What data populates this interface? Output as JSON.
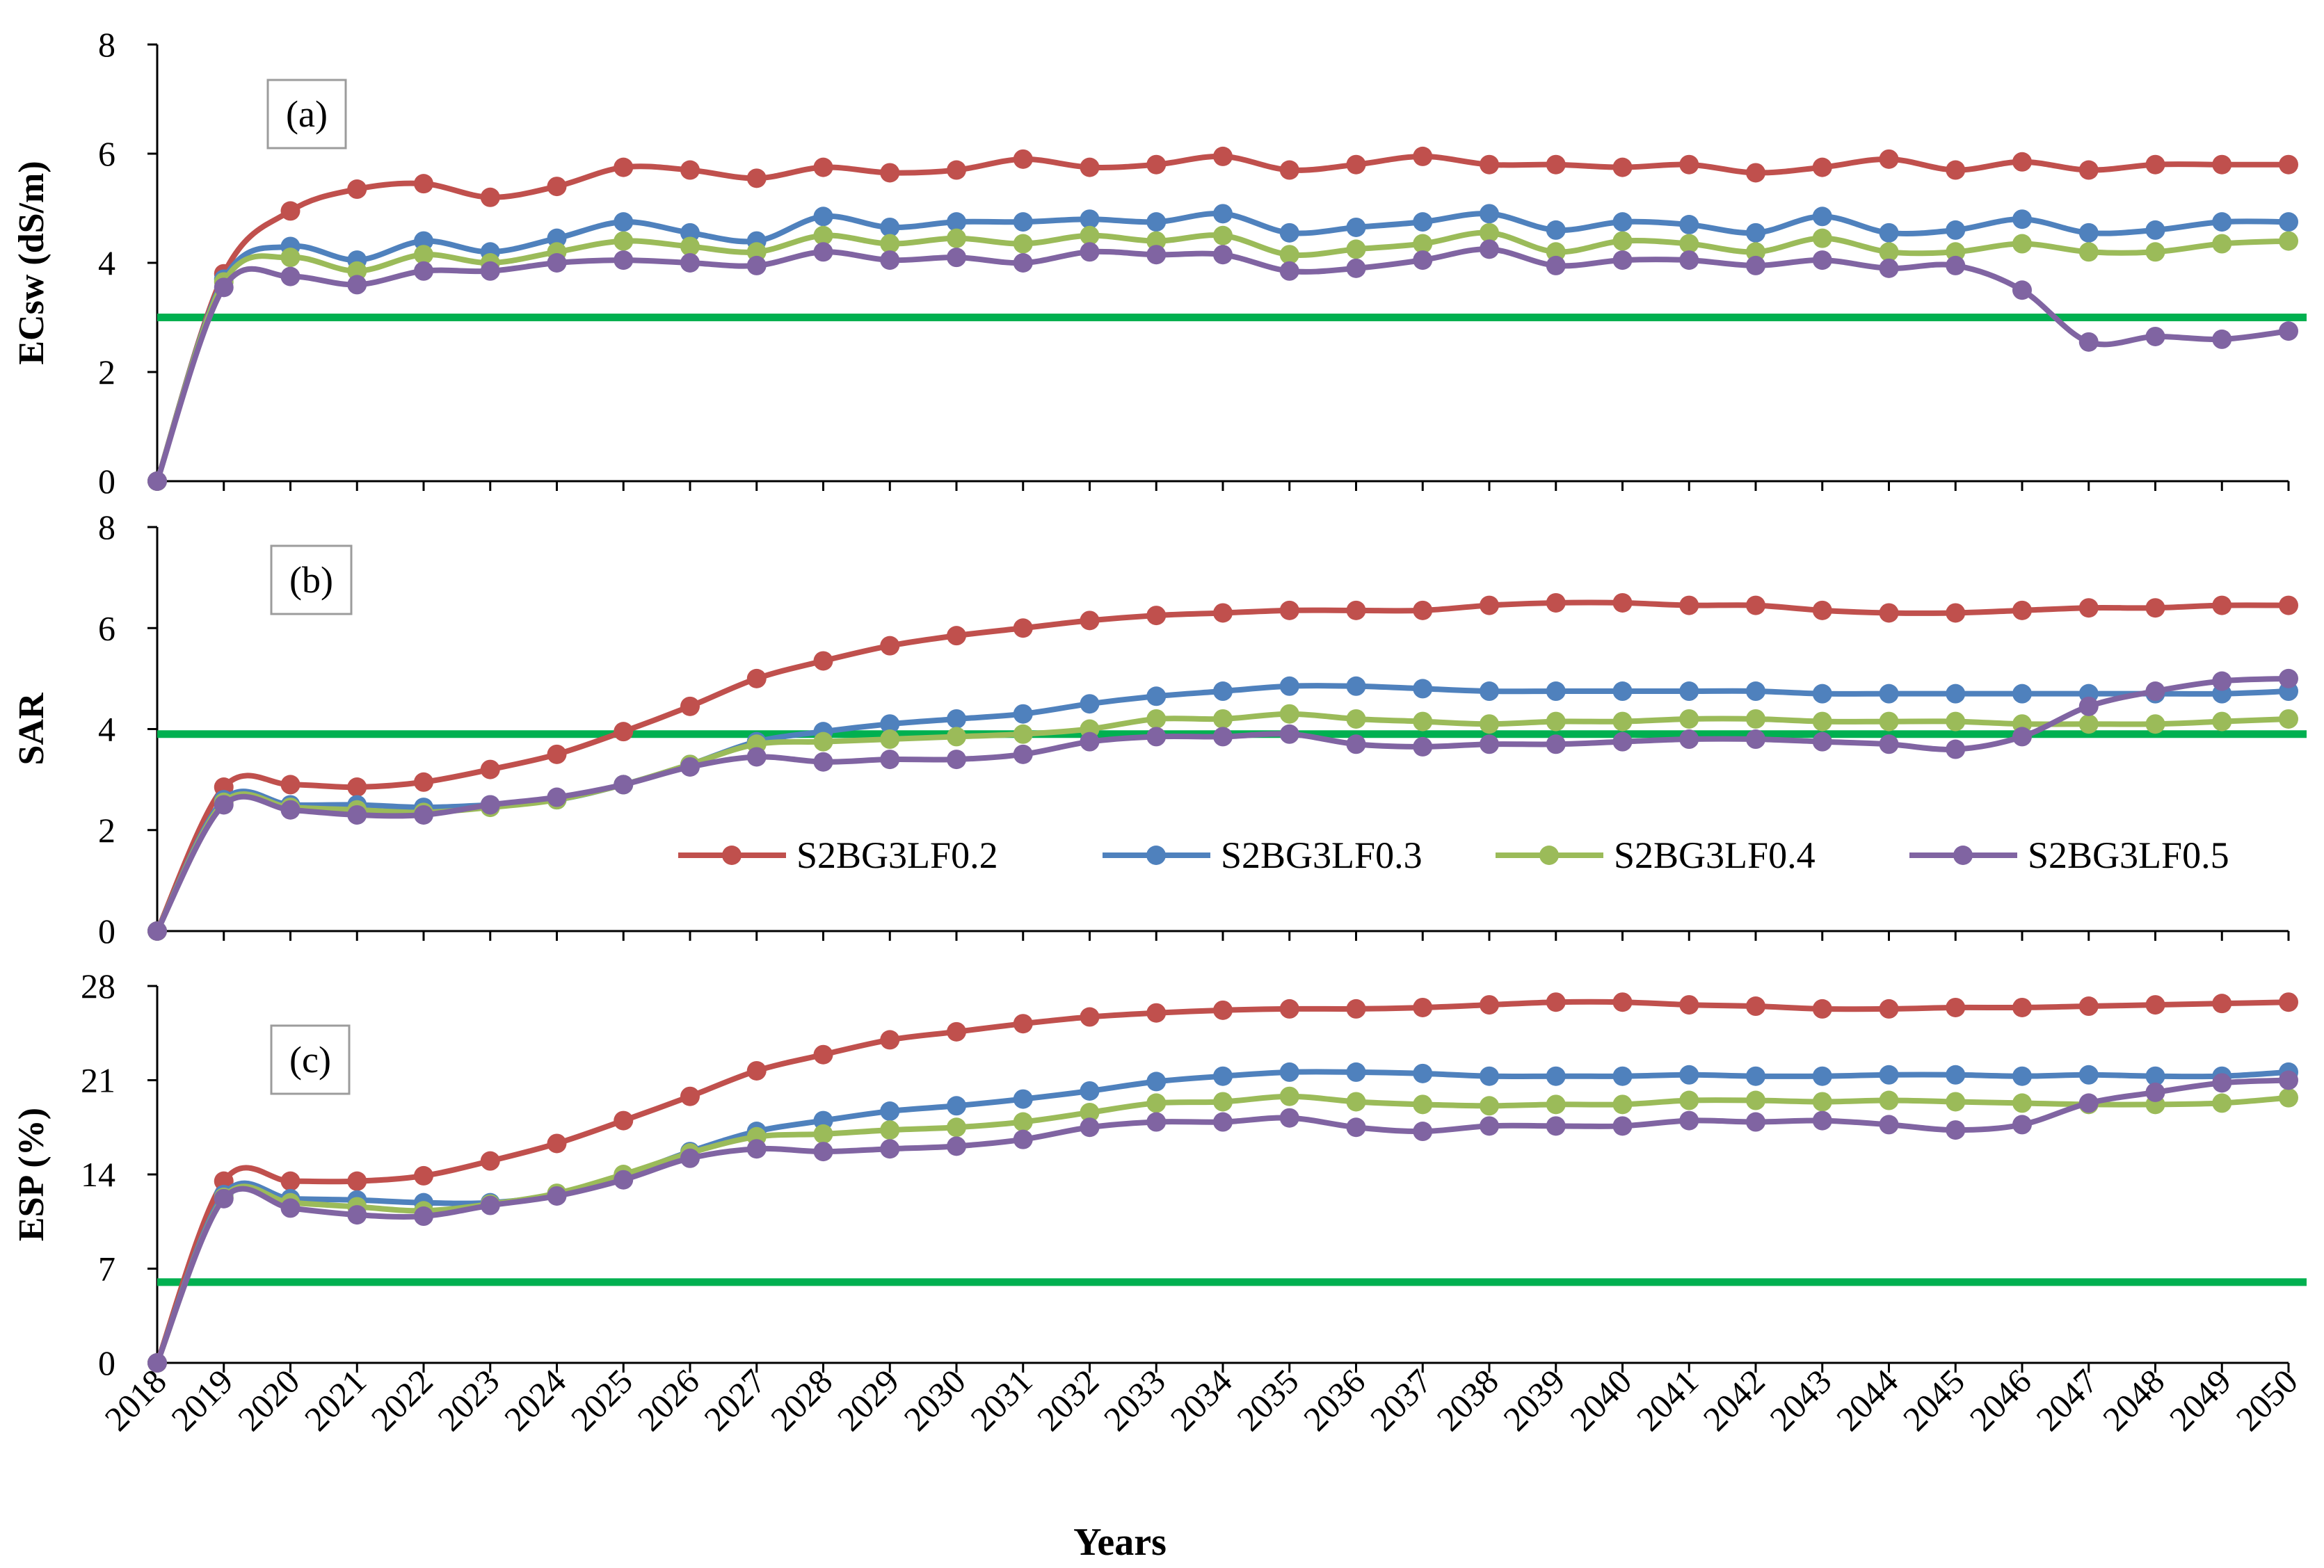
{
  "figure": {
    "xlabel": "Years",
    "colors": {
      "S2BG3LF0.2": "#C0504D",
      "S2BG3LF0.3": "#4F81BD",
      "S2BG3LF0.4": "#9BBB59",
      "S2BG3LF0.5": "#8064A2",
      "threshold": "#00B050",
      "axis": "#000000"
    },
    "legend_position": "inside panel (b), lower right"
  },
  "chart_data": [
    {
      "type": "line",
      "panel": "(a)",
      "ylabel": "ECsw (dS/m)",
      "ylim": [
        0,
        8
      ],
      "yticks": [
        0,
        2,
        4,
        6,
        8
      ],
      "categories": [
        "2018",
        "2019",
        "2020",
        "2021",
        "2022",
        "2023",
        "2024",
        "2025",
        "2026",
        "2027",
        "2028",
        "2029",
        "2030",
        "2031",
        "2032",
        "2033",
        "2034",
        "2035",
        "2036",
        "2037",
        "2038",
        "2039",
        "2040",
        "2041",
        "2042",
        "2043",
        "2044",
        "2045",
        "2046",
        "2047",
        "2048",
        "2049",
        "2050"
      ],
      "threshold": 3,
      "series": [
        {
          "name": "S2BG3LF0.2",
          "values": [
            0,
            3.8,
            4.95,
            5.35,
            5.45,
            5.2,
            5.4,
            5.75,
            5.7,
            5.55,
            5.75,
            5.65,
            5.7,
            5.9,
            5.75,
            5.8,
            5.95,
            5.7,
            5.8,
            5.95,
            5.8,
            5.8,
            5.75,
            5.8,
            5.65,
            5.75,
            5.9,
            5.7,
            5.85,
            5.7,
            5.8,
            5.8,
            5.8
          ]
        },
        {
          "name": "S2BG3LF0.3",
          "values": [
            0,
            3.7,
            4.3,
            4.05,
            4.4,
            4.2,
            4.45,
            4.75,
            4.55,
            4.4,
            4.85,
            4.65,
            4.75,
            4.75,
            4.8,
            4.75,
            4.9,
            4.55,
            4.65,
            4.75,
            4.9,
            4.6,
            4.75,
            4.7,
            4.55,
            4.85,
            4.55,
            4.6,
            4.8,
            4.55,
            4.6,
            4.75,
            4.75
          ]
        },
        {
          "name": "S2BG3LF0.4",
          "values": [
            0,
            3.65,
            4.1,
            3.85,
            4.15,
            4.0,
            4.2,
            4.4,
            4.3,
            4.2,
            4.5,
            4.35,
            4.45,
            4.35,
            4.5,
            4.4,
            4.5,
            4.15,
            4.25,
            4.35,
            4.55,
            4.2,
            4.4,
            4.35,
            4.2,
            4.45,
            4.2,
            4.2,
            4.35,
            4.2,
            4.2,
            4.35,
            4.4
          ]
        },
        {
          "name": "S2BG3LF0.5",
          "values": [
            0,
            3.55,
            3.75,
            3.6,
            3.85,
            3.85,
            4.0,
            4.05,
            4.0,
            3.95,
            4.2,
            4.05,
            4.1,
            4.0,
            4.2,
            4.15,
            4.15,
            3.85,
            3.9,
            4.05,
            4.25,
            3.95,
            4.05,
            4.05,
            3.95,
            4.05,
            3.9,
            3.95,
            3.5,
            2.55,
            2.65,
            2.6,
            2.75
          ]
        }
      ]
    },
    {
      "type": "line",
      "panel": "(b)",
      "ylabel": "SAR",
      "ylim": [
        0,
        8
      ],
      "yticks": [
        0,
        2,
        4,
        6,
        8
      ],
      "categories": [
        "2018",
        "2019",
        "2020",
        "2021",
        "2022",
        "2023",
        "2024",
        "2025",
        "2026",
        "2027",
        "2028",
        "2029",
        "2030",
        "2031",
        "2032",
        "2033",
        "2034",
        "2035",
        "2036",
        "2037",
        "2038",
        "2039",
        "2040",
        "2041",
        "2042",
        "2043",
        "2044",
        "2045",
        "2046",
        "2047",
        "2048",
        "2049",
        "2050"
      ],
      "threshold": 3.9,
      "series": [
        {
          "name": "S2BG3LF0.2",
          "values": [
            0,
            2.85,
            2.9,
            2.85,
            2.95,
            3.2,
            3.5,
            3.95,
            4.45,
            5.0,
            5.35,
            5.65,
            5.85,
            6.0,
            6.15,
            6.25,
            6.3,
            6.35,
            6.35,
            6.35,
            6.45,
            6.5,
            6.5,
            6.45,
            6.45,
            6.35,
            6.3,
            6.3,
            6.35,
            6.4,
            6.4,
            6.45,
            6.45
          ]
        },
        {
          "name": "S2BG3LF0.3",
          "values": [
            0,
            2.6,
            2.5,
            2.5,
            2.45,
            2.5,
            2.6,
            2.9,
            3.3,
            3.75,
            3.95,
            4.1,
            4.2,
            4.3,
            4.5,
            4.65,
            4.75,
            4.85,
            4.85,
            4.8,
            4.75,
            4.75,
            4.75,
            4.75,
            4.75,
            4.7,
            4.7,
            4.7,
            4.7,
            4.7,
            4.7,
            4.7,
            4.75
          ]
        },
        {
          "name": "S2BG3LF0.4",
          "values": [
            0,
            2.55,
            2.45,
            2.4,
            2.35,
            2.45,
            2.6,
            2.9,
            3.3,
            3.7,
            3.75,
            3.8,
            3.85,
            3.9,
            4.0,
            4.2,
            4.2,
            4.3,
            4.2,
            4.15,
            4.1,
            4.15,
            4.15,
            4.2,
            4.2,
            4.15,
            4.15,
            4.15,
            4.1,
            4.1,
            4.1,
            4.15,
            4.2
          ]
        },
        {
          "name": "S2BG3LF0.5",
          "values": [
            0,
            2.5,
            2.4,
            2.3,
            2.3,
            2.5,
            2.65,
            2.9,
            3.25,
            3.45,
            3.35,
            3.4,
            3.4,
            3.5,
            3.75,
            3.85,
            3.85,
            3.9,
            3.7,
            3.65,
            3.7,
            3.7,
            3.75,
            3.8,
            3.8,
            3.75,
            3.7,
            3.6,
            3.85,
            4.45,
            4.75,
            4.95,
            5.0
          ]
        }
      ]
    },
    {
      "type": "line",
      "panel": "(c)",
      "ylabel": "ESP (%)",
      "ylim": [
        0,
        28
      ],
      "yticks": [
        0,
        7,
        14,
        21,
        28
      ],
      "categories": [
        "2018",
        "2019",
        "2020",
        "2021",
        "2022",
        "2023",
        "2024",
        "2025",
        "2026",
        "2027",
        "2028",
        "2029",
        "2030",
        "2031",
        "2032",
        "2033",
        "2034",
        "2035",
        "2036",
        "2037",
        "2038",
        "2039",
        "2040",
        "2041",
        "2042",
        "2043",
        "2044",
        "2045",
        "2046",
        "2047",
        "2048",
        "2049",
        "2050"
      ],
      "threshold": 6,
      "series": [
        {
          "name": "S2BG3LF0.2",
          "values": [
            0,
            13.5,
            13.5,
            13.5,
            13.9,
            15.0,
            16.3,
            18.0,
            19.8,
            21.7,
            22.9,
            24.0,
            24.6,
            25.2,
            25.7,
            26.0,
            26.2,
            26.3,
            26.3,
            26.4,
            26.6,
            26.8,
            26.8,
            26.6,
            26.5,
            26.3,
            26.3,
            26.4,
            26.4,
            26.5,
            26.6,
            26.7,
            26.8
          ]
        },
        {
          "name": "S2BG3LF0.3",
          "values": [
            0,
            12.5,
            12.2,
            12.1,
            11.9,
            11.9,
            12.5,
            13.9,
            15.7,
            17.2,
            18.0,
            18.7,
            19.1,
            19.6,
            20.2,
            20.9,
            21.3,
            21.6,
            21.6,
            21.5,
            21.3,
            21.3,
            21.3,
            21.4,
            21.3,
            21.3,
            21.4,
            21.4,
            21.3,
            21.4,
            21.3,
            21.3,
            21.6
          ]
        },
        {
          "name": "S2BG3LF0.4",
          "values": [
            0,
            12.3,
            11.9,
            11.6,
            11.3,
            11.8,
            12.6,
            14.0,
            15.6,
            16.8,
            17.0,
            17.3,
            17.5,
            17.9,
            18.6,
            19.3,
            19.4,
            19.8,
            19.4,
            19.2,
            19.1,
            19.2,
            19.2,
            19.5,
            19.5,
            19.4,
            19.5,
            19.4,
            19.3,
            19.2,
            19.2,
            19.3,
            19.7
          ]
        },
        {
          "name": "S2BG3LF0.5",
          "values": [
            0,
            12.2,
            11.5,
            11.0,
            10.9,
            11.7,
            12.4,
            13.6,
            15.2,
            15.9,
            15.7,
            15.9,
            16.1,
            16.6,
            17.5,
            17.9,
            17.9,
            18.2,
            17.5,
            17.2,
            17.6,
            17.6,
            17.6,
            18.0,
            17.9,
            18.0,
            17.7,
            17.3,
            17.7,
            19.3,
            20.1,
            20.8,
            21.0
          ]
        }
      ]
    }
  ]
}
